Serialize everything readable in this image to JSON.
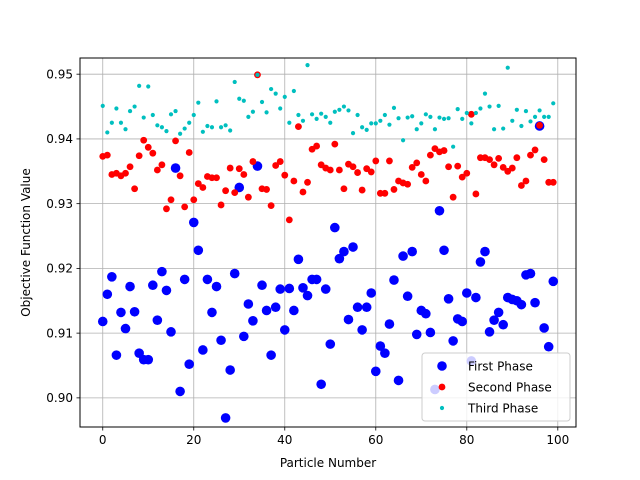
{
  "chart_data": {
    "type": "scatter",
    "xlabel": "Particle Number",
    "ylabel": "Objective Function Value",
    "xlim": [
      -5,
      104
    ],
    "ylim": [
      0.8955,
      0.9525
    ],
    "xticks": [
      0,
      20,
      40,
      60,
      80,
      100
    ],
    "yticks": [
      0.9,
      0.91,
      0.92,
      0.93,
      0.94,
      0.95
    ],
    "ytick_labels": [
      "0.90",
      "0.91",
      "0.92",
      "0.93",
      "0.94",
      "0.95"
    ],
    "grid": true,
    "legend_position": "lower-right",
    "series": [
      {
        "name": "First Phase",
        "color": "#0000ff",
        "marker_size": "large",
        "points": [
          [
            0,
            0.9118
          ],
          [
            1,
            0.916
          ],
          [
            2,
            0.9187
          ],
          [
            3,
            0.9066
          ],
          [
            4,
            0.9132
          ],
          [
            5,
            0.9107
          ],
          [
            6,
            0.9172
          ],
          [
            7,
            0.9133
          ],
          [
            8,
            0.9069
          ],
          [
            9,
            0.9059
          ],
          [
            10,
            0.9059
          ],
          [
            11,
            0.9174
          ],
          [
            12,
            0.912
          ],
          [
            13,
            0.9195
          ],
          [
            14,
            0.9166
          ],
          [
            15,
            0.9102
          ],
          [
            16,
            0.9355
          ],
          [
            17,
            0.901
          ],
          [
            18,
            0.9183
          ],
          [
            19,
            0.9052
          ],
          [
            20,
            0.9271
          ],
          [
            21,
            0.9228
          ],
          [
            22,
            0.9074
          ],
          [
            23,
            0.9183
          ],
          [
            24,
            0.9132
          ],
          [
            25,
            0.9172
          ],
          [
            26,
            0.9089
          ],
          [
            27,
            0.8969
          ],
          [
            28,
            0.9043
          ],
          [
            29,
            0.9192
          ],
          [
            30,
            0.9325
          ],
          [
            31,
            0.9095
          ],
          [
            32,
            0.9145
          ],
          [
            33,
            0.9119
          ],
          [
            34,
            0.9358
          ],
          [
            35,
            0.9174
          ],
          [
            36,
            0.9135
          ],
          [
            37,
            0.9066
          ],
          [
            38,
            0.914
          ],
          [
            39,
            0.9168
          ],
          [
            40,
            0.9105
          ],
          [
            41,
            0.9169
          ],
          [
            42,
            0.9135
          ],
          [
            43,
            0.9214
          ],
          [
            44,
            0.917
          ],
          [
            45,
            0.9158
          ],
          [
            46,
            0.9183
          ],
          [
            47,
            0.9183
          ],
          [
            48,
            0.9021
          ],
          [
            49,
            0.9168
          ],
          [
            50,
            0.9083
          ],
          [
            51,
            0.9263
          ],
          [
            52,
            0.9215
          ],
          [
            53,
            0.9226
          ],
          [
            54,
            0.9121
          ],
          [
            55,
            0.9233
          ],
          [
            56,
            0.914
          ],
          [
            57,
            0.9105
          ],
          [
            58,
            0.914
          ],
          [
            59,
            0.9162
          ],
          [
            60,
            0.9041
          ],
          [
            61,
            0.908
          ],
          [
            62,
            0.9069
          ],
          [
            63,
            0.9114
          ],
          [
            64,
            0.9182
          ],
          [
            65,
            0.9027
          ],
          [
            66,
            0.9219
          ],
          [
            67,
            0.9157
          ],
          [
            68,
            0.9226
          ],
          [
            69,
            0.9098
          ],
          [
            70,
            0.9135
          ],
          [
            71,
            0.913
          ],
          [
            72,
            0.9101
          ],
          [
            73,
            0.9013
          ],
          [
            74,
            0.9289
          ],
          [
            75,
            0.9228
          ],
          [
            76,
            0.9153
          ],
          [
            77,
            0.9088
          ],
          [
            78,
            0.9122
          ],
          [
            79,
            0.9118
          ],
          [
            80,
            0.9162
          ],
          [
            81,
            0.9057
          ],
          [
            82,
            0.9155
          ],
          [
            83,
            0.921
          ],
          [
            84,
            0.9226
          ],
          [
            85,
            0.9102
          ],
          [
            86,
            0.912
          ],
          [
            87,
            0.9132
          ],
          [
            88,
            0.9113
          ],
          [
            89,
            0.9155
          ],
          [
            90,
            0.9152
          ],
          [
            91,
            0.915
          ],
          [
            92,
            0.9144
          ],
          [
            93,
            0.919
          ],
          [
            94,
            0.9192
          ],
          [
            95,
            0.9147
          ],
          [
            96,
            0.942
          ],
          [
            97,
            0.9108
          ],
          [
            98,
            0.9079
          ],
          [
            99,
            0.918
          ]
        ]
      },
      {
        "name": "Second Phase",
        "color": "#ff0000",
        "marker_size": "medium",
        "points": [
          [
            0,
            0.9373
          ],
          [
            1,
            0.9375
          ],
          [
            2,
            0.9345
          ],
          [
            3,
            0.9347
          ],
          [
            4,
            0.9343
          ],
          [
            5,
            0.9347
          ],
          [
            6,
            0.9357
          ],
          [
            7,
            0.9323
          ],
          [
            8,
            0.9374
          ],
          [
            9,
            0.9398
          ],
          [
            10,
            0.9387
          ],
          [
            11,
            0.9378
          ],
          [
            12,
            0.9352
          ],
          [
            13,
            0.936
          ],
          [
            14,
            0.9292
          ],
          [
            15,
            0.9306
          ],
          [
            16,
            0.9397
          ],
          [
            17,
            0.9343
          ],
          [
            18,
            0.9295
          ],
          [
            19,
            0.9379
          ],
          [
            20,
            0.9306
          ],
          [
            21,
            0.9331
          ],
          [
            22,
            0.9325
          ],
          [
            23,
            0.9342
          ],
          [
            24,
            0.934
          ],
          [
            25,
            0.934
          ],
          [
            26,
            0.9298
          ],
          [
            27,
            0.932
          ],
          [
            28,
            0.9355
          ],
          [
            29,
            0.9317
          ],
          [
            30,
            0.9354
          ],
          [
            31,
            0.9345
          ],
          [
            32,
            0.931
          ],
          [
            33,
            0.9365
          ],
          [
            34,
            0.9499
          ],
          [
            35,
            0.9323
          ],
          [
            36,
            0.9322
          ],
          [
            37,
            0.9297
          ],
          [
            38,
            0.9359
          ],
          [
            39,
            0.9365
          ],
          [
            40,
            0.9344
          ],
          [
            41,
            0.9275
          ],
          [
            42,
            0.9335
          ],
          [
            43,
            0.9419
          ],
          [
            44,
            0.9318
          ],
          [
            45,
            0.9333
          ],
          [
            46,
            0.9384
          ],
          [
            47,
            0.9389
          ],
          [
            48,
            0.936
          ],
          [
            49,
            0.9355
          ],
          [
            50,
            0.9352
          ],
          [
            51,
            0.9392
          ],
          [
            52,
            0.9352
          ],
          [
            53,
            0.9323
          ],
          [
            54,
            0.9361
          ],
          [
            55,
            0.9357
          ],
          [
            56,
            0.9348
          ],
          [
            57,
            0.9321
          ],
          [
            58,
            0.9354
          ],
          [
            59,
            0.9349
          ],
          [
            60,
            0.9366
          ],
          [
            61,
            0.9316
          ],
          [
            62,
            0.9316
          ],
          [
            63,
            0.9366
          ],
          [
            64,
            0.9322
          ],
          [
            65,
            0.9335
          ],
          [
            66,
            0.9332
          ],
          [
            67,
            0.933
          ],
          [
            68,
            0.9356
          ],
          [
            69,
            0.9363
          ],
          [
            70,
            0.9345
          ],
          [
            71,
            0.9335
          ],
          [
            72,
            0.9375
          ],
          [
            73,
            0.9385
          ],
          [
            74,
            0.938
          ],
          [
            75,
            0.9382
          ],
          [
            76,
            0.9357
          ],
          [
            77,
            0.931
          ],
          [
            78,
            0.9358
          ],
          [
            79,
            0.9341
          ],
          [
            80,
            0.9347
          ],
          [
            81,
            0.9438
          ],
          [
            82,
            0.9315
          ],
          [
            83,
            0.9371
          ],
          [
            84,
            0.9371
          ],
          [
            85,
            0.9368
          ],
          [
            86,
            0.936
          ],
          [
            87,
            0.937
          ],
          [
            88,
            0.9356
          ],
          [
            89,
            0.935
          ],
          [
            90,
            0.9355
          ],
          [
            91,
            0.9371
          ],
          [
            92,
            0.9328
          ],
          [
            93,
            0.9335
          ],
          [
            94,
            0.9375
          ],
          [
            95,
            0.9383
          ],
          [
            96,
            0.9421
          ],
          [
            97,
            0.9368
          ],
          [
            98,
            0.9333
          ],
          [
            99,
            0.9333
          ]
        ]
      },
      {
        "name": "Third Phase",
        "color": "#00bfbf",
        "marker_size": "small",
        "points": [
          [
            0,
            0.9451
          ],
          [
            1,
            0.941
          ],
          [
            2,
            0.9425
          ],
          [
            3,
            0.9447
          ],
          [
            4,
            0.9425
          ],
          [
            5,
            0.9415
          ],
          [
            6,
            0.9443
          ],
          [
            7,
            0.945
          ],
          [
            8,
            0.9482
          ],
          [
            9,
            0.9433
          ],
          [
            10,
            0.9481
          ],
          [
            11,
            0.9437
          ],
          [
            12,
            0.9421
          ],
          [
            13,
            0.9418
          ],
          [
            14,
            0.9412
          ],
          [
            15,
            0.9438
          ],
          [
            16,
            0.9443
          ],
          [
            17,
            0.9408
          ],
          [
            18,
            0.9416
          ],
          [
            19,
            0.9425
          ],
          [
            20,
            0.9437
          ],
          [
            21,
            0.9456
          ],
          [
            22,
            0.9411
          ],
          [
            23,
            0.942
          ],
          [
            24,
            0.9418
          ],
          [
            25,
            0.9458
          ],
          [
            26,
            0.9418
          ],
          [
            27,
            0.9421
          ],
          [
            28,
            0.9413
          ],
          [
            29,
            0.9488
          ],
          [
            30,
            0.9462
          ],
          [
            31,
            0.9459
          ],
          [
            32,
            0.9434
          ],
          [
            33,
            0.9442
          ],
          [
            34,
            0.9499
          ],
          [
            35,
            0.9457
          ],
          [
            36,
            0.9441
          ],
          [
            37,
            0.9477
          ],
          [
            38,
            0.947
          ],
          [
            39,
            0.9447
          ],
          [
            40,
            0.9465
          ],
          [
            41,
            0.9425
          ],
          [
            42,
            0.9474
          ],
          [
            43,
            0.9437
          ],
          [
            44,
            0.9428
          ],
          [
            45,
            0.9514
          ],
          [
            46,
            0.9438
          ],
          [
            47,
            0.9431
          ],
          [
            48,
            0.9439
          ],
          [
            49,
            0.9434
          ],
          [
            50,
            0.9425
          ],
          [
            51,
            0.9442
          ],
          [
            52,
            0.9445
          ],
          [
            53,
            0.945
          ],
          [
            54,
            0.9444
          ],
          [
            55,
            0.9409
          ],
          [
            56,
            0.9437
          ],
          [
            57,
            0.9418
          ],
          [
            58,
            0.9414
          ],
          [
            59,
            0.9424
          ],
          [
            60,
            0.9424
          ],
          [
            61,
            0.9428
          ],
          [
            62,
            0.9437
          ],
          [
            63,
            0.9422
          ],
          [
            64,
            0.9448
          ],
          [
            65,
            0.9432
          ],
          [
            66,
            0.9398
          ],
          [
            67,
            0.9433
          ],
          [
            68,
            0.9435
          ],
          [
            69,
            0.9415
          ],
          [
            70,
            0.9424
          ],
          [
            71,
            0.9438
          ],
          [
            72,
            0.9434
          ],
          [
            73,
            0.9415
          ],
          [
            74,
            0.9433
          ],
          [
            75,
            0.9431
          ],
          [
            76,
            0.9432
          ],
          [
            77,
            0.9388
          ],
          [
            78,
            0.9446
          ],
          [
            79,
            0.9431
          ],
          [
            80,
            0.944
          ],
          [
            81,
            0.9424
          ],
          [
            82,
            0.944
          ],
          [
            83,
            0.9447
          ],
          [
            84,
            0.947
          ],
          [
            85,
            0.945
          ],
          [
            86,
            0.9415
          ],
          [
            87,
            0.9451
          ],
          [
            88,
            0.9416
          ],
          [
            89,
            0.951
          ],
          [
            90,
            0.9428
          ],
          [
            91,
            0.9445
          ],
          [
            92,
            0.942
          ],
          [
            93,
            0.9443
          ],
          [
            94,
            0.9427
          ],
          [
            95,
            0.9434
          ],
          [
            96,
            0.9444
          ],
          [
            97,
            0.9434
          ],
          [
            98,
            0.9434
          ],
          [
            99,
            0.9455
          ]
        ]
      }
    ]
  }
}
